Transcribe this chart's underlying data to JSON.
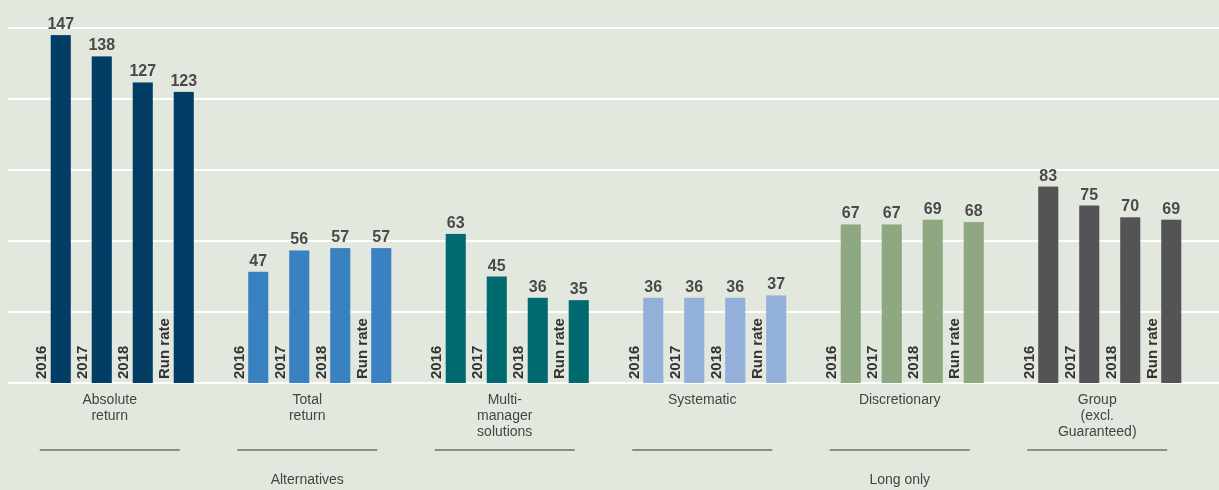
{
  "chart_data": {
    "type": "bar",
    "categories": [
      "Absolute\nreturn",
      "Total\nreturn",
      "Multi-\nmanager\nsolutions",
      "Systematic",
      "Discretionary",
      "Group\n(excl.\nGuaranteed)"
    ],
    "series": [
      {
        "name": "2016",
        "values": [
          147,
          47,
          63,
          36,
          67,
          83
        ],
        "colors": [
          "#023d66",
          "#3a81c1",
          "#006a71",
          "#93b0da",
          "#8ea882",
          "#545456"
        ]
      },
      {
        "name": "2017",
        "values": [
          138,
          56,
          45,
          36,
          67,
          75
        ],
        "colors": [
          "#023d66",
          "#3a81c1",
          "#006a71",
          "#93b0da",
          "#8ea882",
          "#545456"
        ]
      },
      {
        "name": "2018",
        "values": [
          127,
          57,
          36,
          36,
          69,
          70
        ],
        "colors": [
          "#023d66",
          "#3a81c1",
          "#006a71",
          "#93b0da",
          "#8ea882",
          "#545456"
        ]
      },
      {
        "name": "Run rate",
        "values": [
          123,
          57,
          35,
          37,
          68,
          69
        ],
        "colors": [
          "#023d66",
          "#3a81c1",
          "#006a71",
          "#93b0da",
          "#8ea882",
          "#545456"
        ]
      }
    ],
    "ylim": [
      0,
      150
    ],
    "yticks": [
      {
        "value": 0,
        "label": null
      },
      {
        "value": 30,
        "label": null
      },
      {
        "value": 60,
        "label": null
      },
      {
        "value": 90,
        "label": null
      },
      {
        "value": 120,
        "label": null
      },
      {
        "value": 150,
        "label": null
      }
    ],
    "grid": "y",
    "tick_labels": "x",
    "data_labels": true,
    "annotations": [
      "Alternatives",
      "Long only"
    ]
  }
}
